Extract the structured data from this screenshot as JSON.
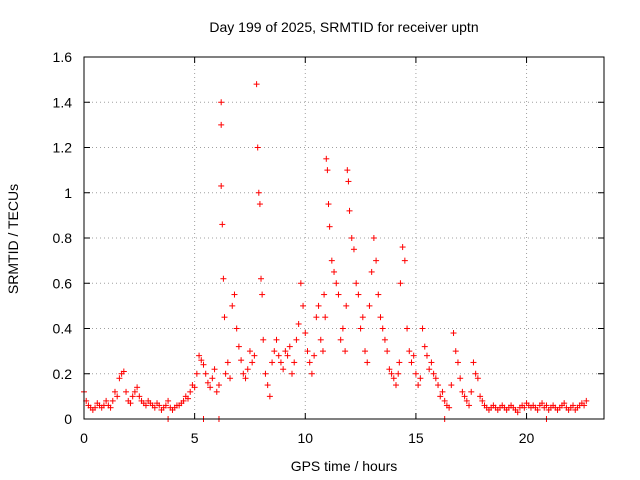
{
  "chart_data": {
    "type": "scatter",
    "title": "Day 199 of 2025, SRMTID for receiver uptn",
    "xlabel": "GPS time / hours",
    "ylabel": "SRMTID / TECUs",
    "xlim": [
      0,
      23.5
    ],
    "ylim": [
      0,
      1.6
    ],
    "xticks": [
      0,
      5,
      10,
      15,
      20
    ],
    "yticks": [
      0,
      0.2,
      0.4,
      0.6,
      0.8,
      1,
      1.2,
      1.4,
      1.6
    ],
    "xtick_labels": [
      "0",
      "5",
      "10",
      "15",
      "20"
    ],
    "ytick_labels": [
      "0",
      "0.2",
      "0.4",
      "0.6",
      "0.8",
      "1",
      "1.2",
      "1.4",
      "1.6"
    ],
    "grid": true,
    "marker": "+",
    "color": "#ff0000",
    "series": [
      {
        "name": "uptn",
        "x": [
          0.0,
          0.1,
          0.2,
          0.3,
          0.4,
          0.5,
          0.6,
          0.7,
          0.8,
          0.9,
          1.0,
          1.1,
          1.2,
          1.3,
          1.4,
          1.5,
          1.6,
          1.7,
          1.8,
          1.9,
          2.0,
          2.1,
          2.2,
          2.3,
          2.4,
          2.5,
          2.6,
          2.7,
          2.8,
          2.9,
          3.0,
          3.1,
          3.2,
          3.3,
          3.4,
          3.5,
          3.6,
          3.7,
          3.8,
          3.9,
          4.0,
          4.1,
          4.2,
          4.3,
          4.4,
          4.5,
          4.6,
          4.7,
          4.8,
          4.9,
          5.0,
          5.1,
          5.2,
          5.3,
          5.4,
          5.5,
          5.6,
          5.7,
          5.8,
          5.9,
          6.0,
          6.1,
          6.2,
          6.2,
          6.2,
          6.25,
          6.3,
          6.35,
          6.4,
          6.5,
          6.6,
          6.7,
          6.8,
          6.9,
          7.0,
          7.1,
          7.2,
          7.3,
          7.4,
          7.5,
          7.6,
          7.7,
          7.8,
          7.85,
          7.9,
          7.95,
          8.0,
          8.05,
          8.1,
          8.2,
          8.3,
          8.4,
          8.5,
          8.6,
          8.7,
          8.8,
          8.9,
          9.0,
          9.1,
          9.2,
          9.3,
          9.4,
          9.5,
          9.6,
          9.7,
          9.8,
          9.9,
          10.0,
          10.1,
          10.2,
          10.3,
          10.4,
          10.5,
          10.6,
          10.7,
          10.8,
          10.85,
          10.9,
          10.95,
          11.0,
          11.05,
          11.1,
          11.2,
          11.3,
          11.4,
          11.5,
          11.6,
          11.7,
          11.8,
          11.85,
          11.9,
          11.95,
          12.0,
          12.1,
          12.2,
          12.3,
          12.4,
          12.5,
          12.6,
          12.7,
          12.8,
          12.9,
          13.0,
          13.1,
          13.2,
          13.3,
          13.4,
          13.5,
          13.6,
          13.7,
          13.8,
          13.9,
          14.0,
          14.1,
          14.2,
          14.25,
          14.3,
          14.4,
          14.5,
          14.6,
          14.7,
          14.8,
          14.9,
          15.0,
          15.1,
          15.2,
          15.3,
          15.4,
          15.5,
          15.6,
          15.7,
          15.8,
          15.9,
          16.0,
          16.1,
          16.2,
          16.3,
          16.4,
          16.5,
          16.6,
          16.7,
          16.8,
          16.9,
          17.0,
          17.1,
          17.2,
          17.3,
          17.4,
          17.5,
          17.6,
          17.7,
          17.8,
          17.9,
          18.0,
          18.1,
          18.2,
          18.3,
          18.4,
          18.5,
          18.6,
          18.7,
          18.8,
          18.9,
          19.0,
          19.1,
          19.2,
          19.3,
          19.4,
          19.5,
          19.6,
          19.7,
          19.8,
          19.9,
          20.0,
          20.1,
          20.2,
          20.3,
          20.4,
          20.5,
          20.6,
          20.7,
          20.8,
          20.9,
          21.0,
          21.1,
          21.2,
          21.3,
          21.4,
          21.5,
          21.6,
          21.7,
          21.8,
          21.9,
          22.0,
          22.1,
          22.2,
          22.3,
          22.4,
          22.5,
          22.6,
          22.7,
          3.8,
          5.4,
          6.1,
          16.3,
          20.9
        ],
        "y": [
          0.12,
          0.08,
          0.06,
          0.05,
          0.04,
          0.05,
          0.07,
          0.06,
          0.05,
          0.06,
          0.08,
          0.06,
          0.05,
          0.08,
          0.12,
          0.1,
          0.18,
          0.2,
          0.21,
          0.12,
          0.08,
          0.07,
          0.1,
          0.12,
          0.14,
          0.1,
          0.08,
          0.07,
          0.06,
          0.08,
          0.07,
          0.06,
          0.05,
          0.07,
          0.06,
          0.04,
          0.05,
          0.06,
          0.08,
          0.05,
          0.04,
          0.05,
          0.06,
          0.06,
          0.07,
          0.08,
          0.1,
          0.09,
          0.12,
          0.15,
          0.14,
          0.2,
          0.28,
          0.26,
          0.24,
          0.2,
          0.16,
          0.14,
          0.18,
          0.22,
          0.12,
          0.15,
          1.4,
          1.3,
          1.03,
          0.86,
          0.62,
          0.45,
          0.2,
          0.25,
          0.18,
          0.5,
          0.55,
          0.4,
          0.32,
          0.26,
          0.2,
          0.18,
          0.22,
          0.3,
          0.25,
          0.28,
          1.48,
          1.2,
          1.0,
          0.95,
          0.62,
          0.55,
          0.35,
          0.2,
          0.15,
          0.1,
          0.25,
          0.3,
          0.35,
          0.28,
          0.25,
          0.22,
          0.3,
          0.28,
          0.32,
          0.2,
          0.25,
          0.35,
          0.42,
          0.6,
          0.5,
          0.38,
          0.3,
          0.25,
          0.2,
          0.28,
          0.45,
          0.5,
          0.35,
          0.3,
          0.55,
          0.45,
          1.15,
          1.1,
          0.95,
          0.85,
          0.7,
          0.65,
          0.6,
          0.55,
          0.35,
          0.4,
          0.3,
          0.5,
          1.1,
          1.05,
          0.92,
          0.8,
          0.75,
          0.6,
          0.55,
          0.4,
          0.45,
          0.3,
          0.25,
          0.5,
          0.65,
          0.8,
          0.7,
          0.55,
          0.45,
          0.4,
          0.35,
          0.3,
          0.22,
          0.2,
          0.18,
          0.15,
          0.2,
          0.25,
          0.6,
          0.76,
          0.7,
          0.4,
          0.3,
          0.25,
          0.28,
          0.2,
          0.15,
          0.18,
          0.4,
          0.32,
          0.28,
          0.22,
          0.25,
          0.2,
          0.18,
          0.15,
          0.1,
          0.12,
          0.08,
          0.06,
          0.05,
          0.15,
          0.38,
          0.3,
          0.25,
          0.18,
          0.12,
          0.1,
          0.08,
          0.06,
          0.12,
          0.25,
          0.2,
          0.18,
          0.1,
          0.08,
          0.06,
          0.05,
          0.04,
          0.05,
          0.06,
          0.05,
          0.04,
          0.05,
          0.06,
          0.05,
          0.04,
          0.05,
          0.06,
          0.05,
          0.04,
          0.03,
          0.05,
          0.06,
          0.05,
          0.07,
          0.06,
          0.05,
          0.06,
          0.05,
          0.04,
          0.06,
          0.07,
          0.05,
          0.06,
          0.04,
          0.05,
          0.06,
          0.05,
          0.04,
          0.05,
          0.06,
          0.07,
          0.05,
          0.04,
          0.05,
          0.06,
          0.04,
          0.05,
          0.06,
          0.07,
          0.06,
          0.08,
          0.0,
          0.0,
          0.0,
          0.0,
          0.0
        ]
      }
    ]
  }
}
